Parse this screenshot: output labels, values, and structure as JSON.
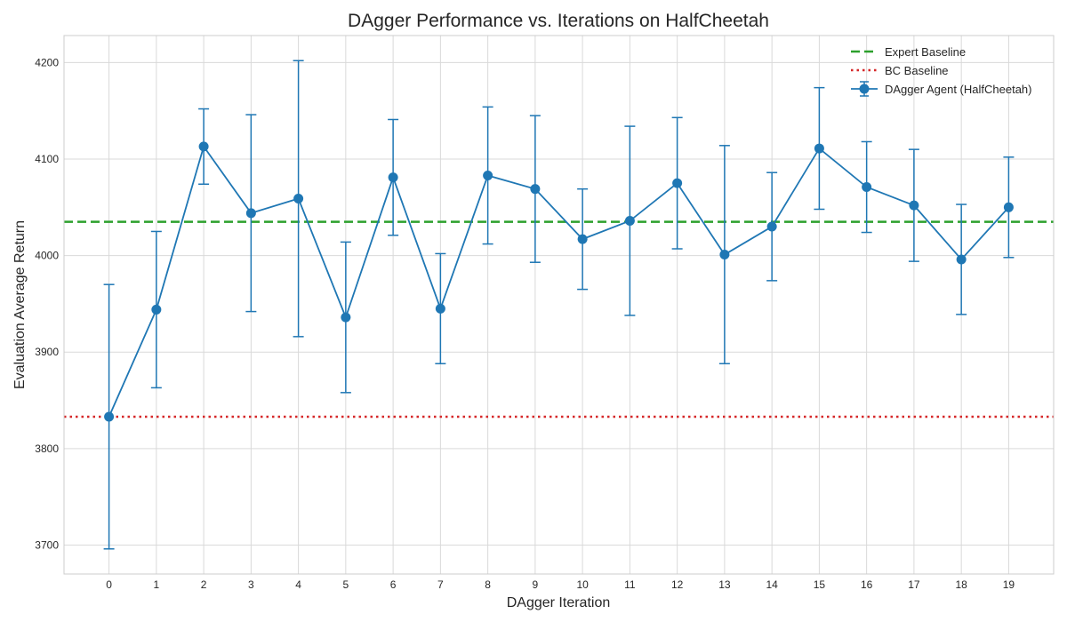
{
  "chart_data": {
    "type": "line",
    "title": "DAgger Performance vs. Iterations on HalfCheetah",
    "xlabel": "DAgger Iteration",
    "ylabel": "Evaluation Average Return",
    "x": [
      0,
      1,
      2,
      3,
      4,
      5,
      6,
      7,
      8,
      9,
      10,
      11,
      12,
      13,
      14,
      15,
      16,
      17,
      18,
      19
    ],
    "xlim": [
      -0.95,
      19.95
    ],
    "ylim": [
      3670,
      4228
    ],
    "xticks": [
      "0",
      "1",
      "2",
      "3",
      "4",
      "5",
      "6",
      "7",
      "8",
      "9",
      "10",
      "11",
      "12",
      "13",
      "14",
      "15",
      "16",
      "17",
      "18",
      "19"
    ],
    "yticks": [
      3700,
      3800,
      3900,
      4000,
      4100,
      4200
    ],
    "ytick_labels": [
      "3700",
      "3800",
      "3900",
      "4000",
      "4100",
      "4200"
    ],
    "grid": true,
    "legend_position": "top-right",
    "series": [
      {
        "name": "DAgger Agent (HalfCheetah)",
        "color": "#1f77b4",
        "marker": "circle",
        "values": [
          3833,
          3944,
          4113,
          4044,
          4059,
          3936,
          4081,
          3945,
          4083,
          4069,
          4017,
          4036,
          4075,
          4001,
          4030,
          4111,
          4071,
          4052,
          3996,
          4050
        ],
        "error": [
          137,
          81,
          39,
          102,
          143,
          78,
          60,
          57,
          71,
          76,
          52,
          98,
          68,
          113,
          56,
          63,
          47,
          58,
          57,
          52
        ]
      }
    ],
    "reference_lines": [
      {
        "name": "Expert Baseline",
        "y": 4035,
        "color": "#2ca02c",
        "style": "dashed"
      },
      {
        "name": "BC Baseline",
        "y": 3833,
        "color": "#d62728",
        "style": "dotted"
      }
    ]
  }
}
